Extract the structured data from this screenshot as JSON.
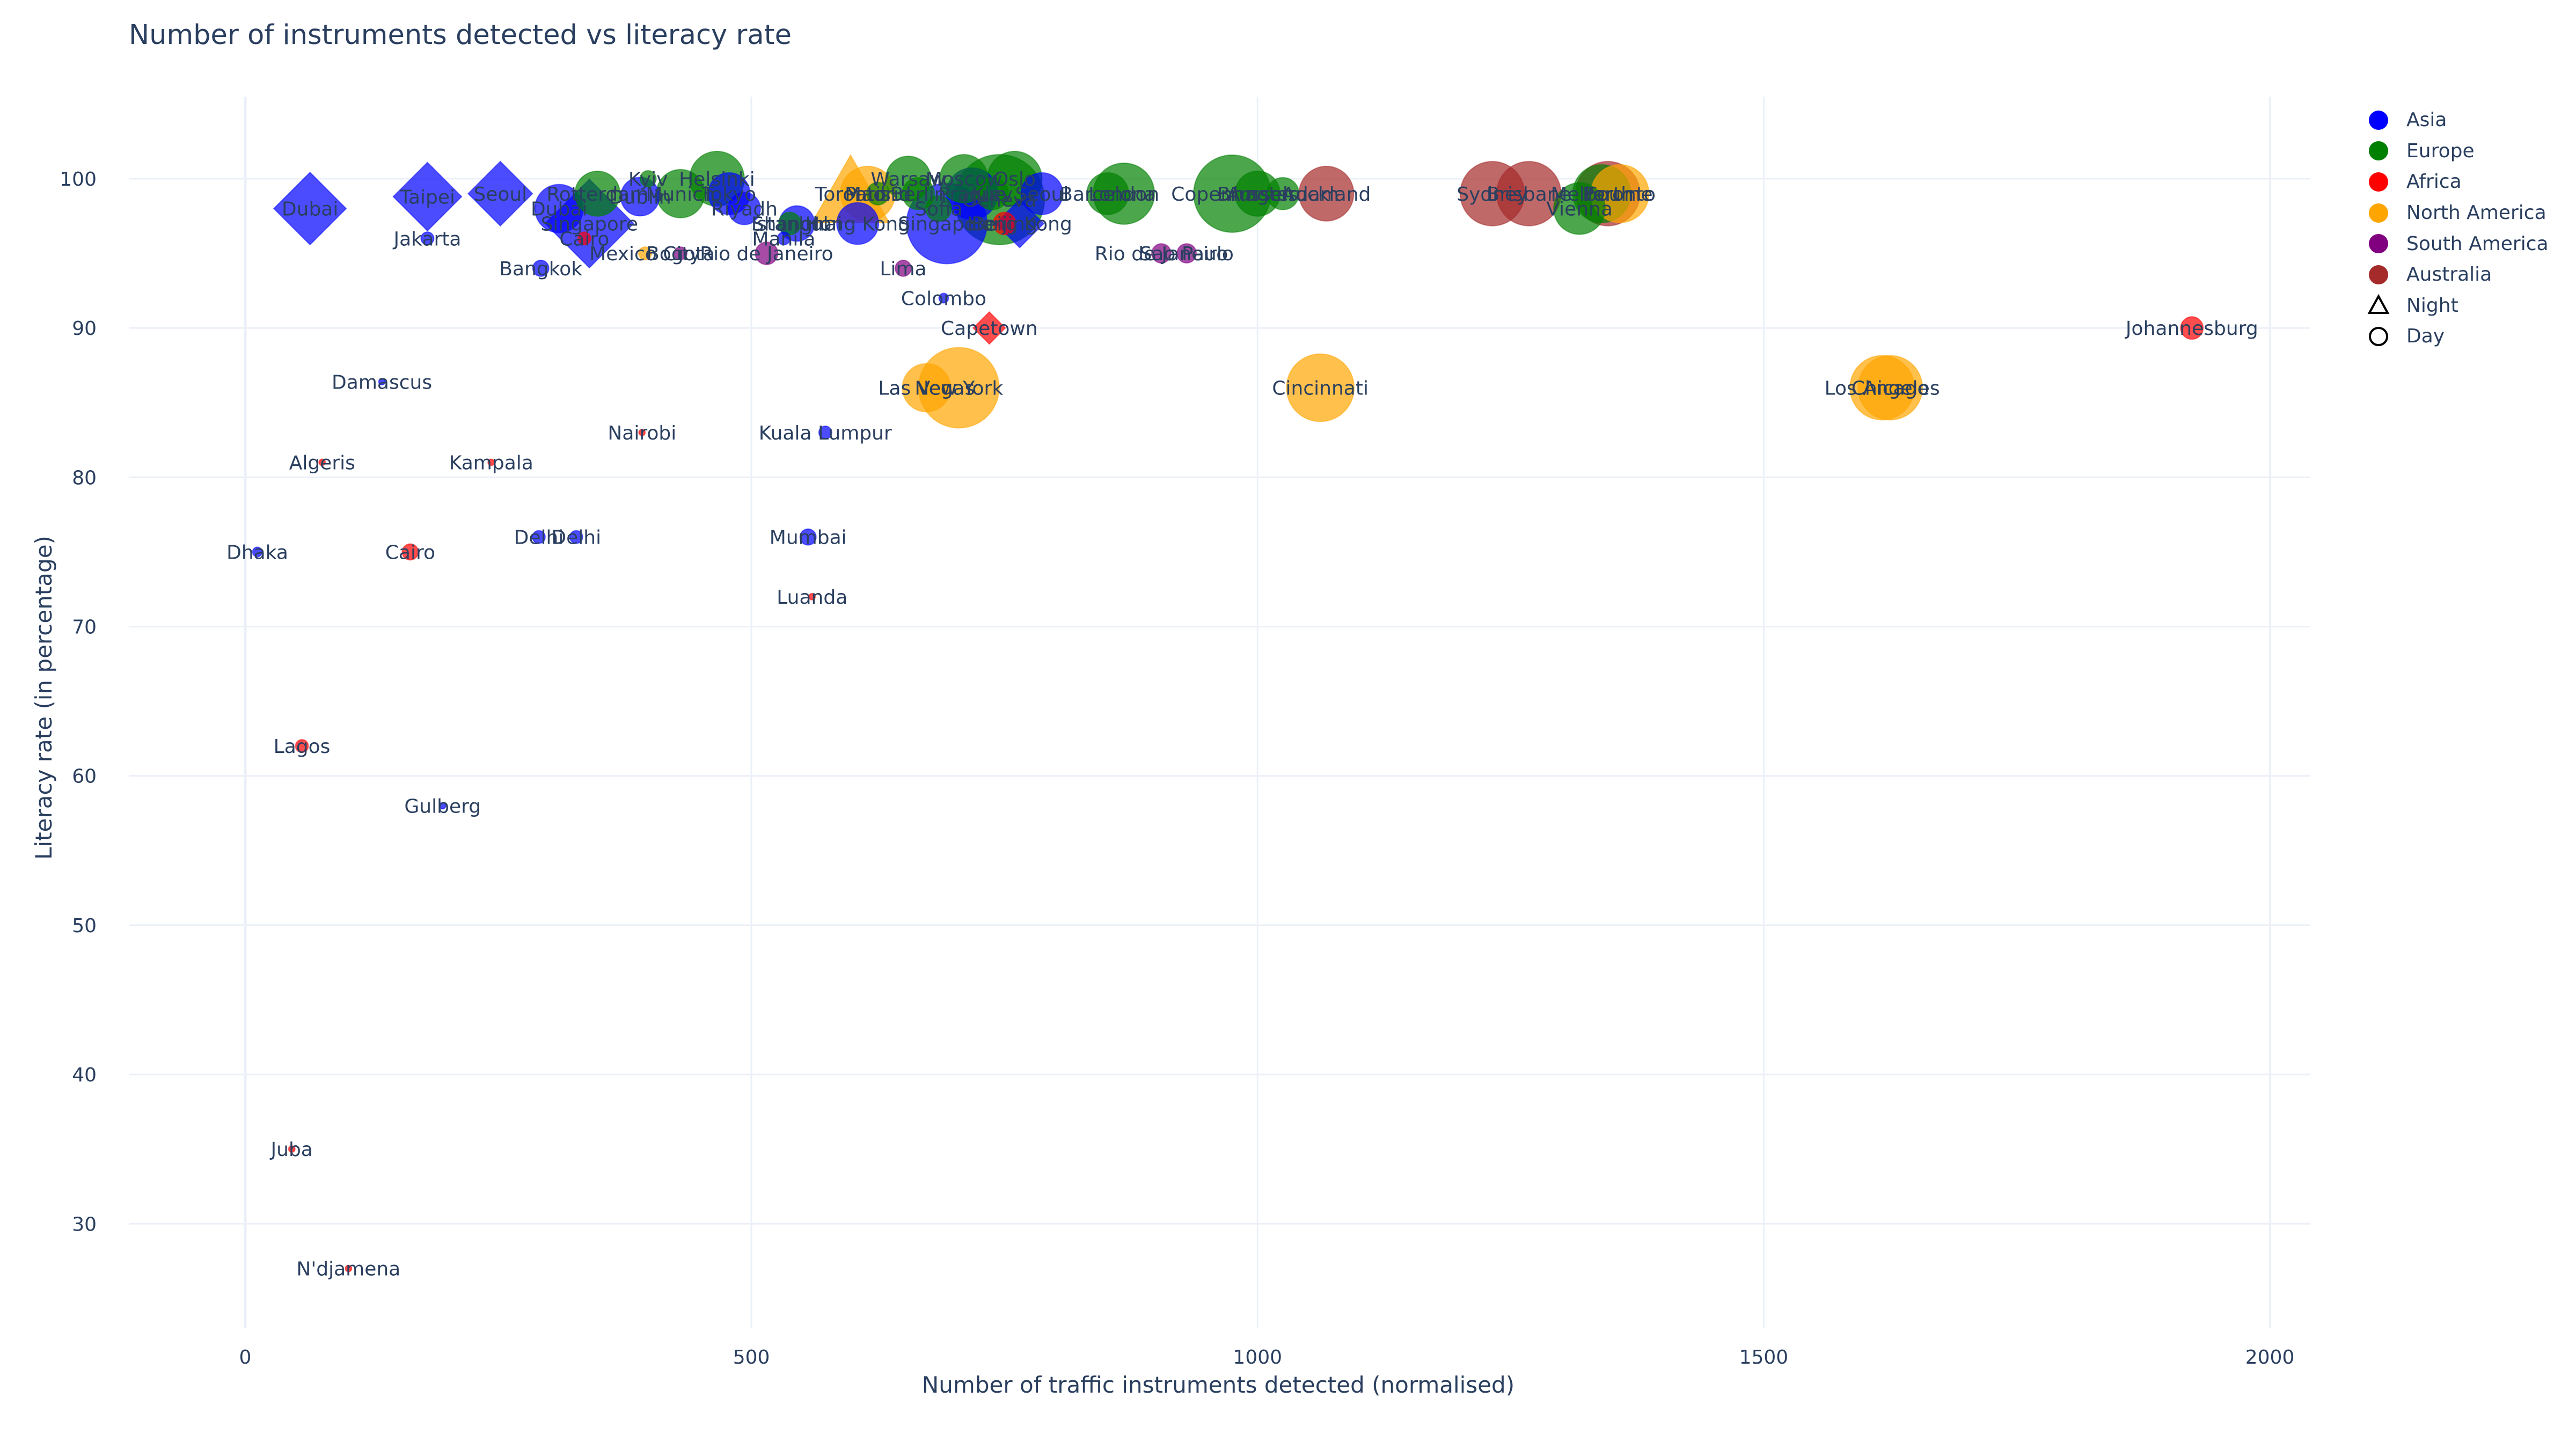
{
  "chart_data": {
    "type": "scatter",
    "title": "Number of instruments detected vs literacy rate",
    "xlabel": "Number of traffic instruments detected (normalised)",
    "ylabel": "Literacy rate (in percentage)",
    "xlim": [
      -115,
      2040
    ],
    "ylim": [
      23,
      105.5
    ],
    "x_ticks": [
      0,
      500,
      1000,
      1500,
      2000
    ],
    "y_ticks": [
      30,
      40,
      50,
      60,
      70,
      80,
      90,
      100
    ],
    "grid": true,
    "legend_position": "top-right",
    "continent_colors": {
      "Asia": "#0000ff",
      "Europe": "#008000",
      "Africa": "#ff0000",
      "North America": "#ffa500",
      "South America": "#800080",
      "Australia": "#a52a2a"
    },
    "legend": [
      {
        "label": "Asia",
        "symbol": "circle",
        "color": "#0000ff"
      },
      {
        "label": "Europe",
        "symbol": "circle",
        "color": "#008000"
      },
      {
        "label": "Africa",
        "symbol": "circle",
        "color": "#ff0000"
      },
      {
        "label": "North America",
        "symbol": "circle",
        "color": "#ffa500"
      },
      {
        "label": "South America",
        "symbol": "circle",
        "color": "#800080"
      },
      {
        "label": "Australia",
        "symbol": "circle",
        "color": "#a52a2a"
      },
      {
        "label": "Night",
        "symbol": "triangle-open",
        "color": "#000000"
      },
      {
        "label": "Day",
        "symbol": "circle-open",
        "color": "#000000"
      }
    ],
    "points": [
      {
        "label": "Dubai",
        "x": 64,
        "y": 98,
        "continent": "Asia",
        "symbol": "diamond",
        "size": 36
      },
      {
        "label": "Taipei",
        "x": 180,
        "y": 98.8,
        "continent": "Asia",
        "symbol": "diamond",
        "size": 34
      },
      {
        "label": "Seoul",
        "x": 252,
        "y": 99,
        "continent": "Asia",
        "symbol": "diamond",
        "size": 32
      },
      {
        "label": "Jakarta",
        "x": 180,
        "y": 96,
        "continent": "Asia",
        "symbol": "circle",
        "size": 8
      },
      {
        "label": "Bangkok",
        "x": 292,
        "y": 94,
        "continent": "Asia",
        "symbol": "circle",
        "size": 10
      },
      {
        "label": "Dubai",
        "x": 310,
        "y": 98,
        "continent": "Asia",
        "symbol": "circle",
        "size": 30
      },
      {
        "label": "Singapore",
        "x": 340,
        "y": 97,
        "continent": "Asia",
        "symbol": "diamond",
        "size": 44
      },
      {
        "label": "Cairo",
        "x": 335,
        "y": 96,
        "continent": "Africa",
        "symbol": "circle",
        "size": 8
      },
      {
        "label": "Rotterdam",
        "x": 348,
        "y": 99,
        "continent": "Europe",
        "symbol": "circle",
        "size": 28
      },
      {
        "label": "Dublin",
        "x": 390,
        "y": 98.8,
        "continent": "Asia",
        "symbol": "circle",
        "size": 24
      },
      {
        "label": "Kyiv",
        "x": 398,
        "y": 100,
        "continent": "Europe",
        "symbol": "circle",
        "size": 10
      },
      {
        "label": "Munich",
        "x": 430,
        "y": 99,
        "continent": "Europe",
        "symbol": "circle",
        "size": 30
      },
      {
        "label": "Helsinki",
        "x": 466,
        "y": 100,
        "continent": "Europe",
        "symbol": "circle",
        "size": 34
      },
      {
        "label": "Tokyo",
        "x": 478,
        "y": 99,
        "continent": "Asia",
        "symbol": "circle",
        "size": 26
      },
      {
        "label": "Riyadh",
        "x": 493,
        "y": 98,
        "continent": "Asia",
        "symbol": "circle",
        "size": 20
      },
      {
        "label": "Mexico City",
        "x": 395,
        "y": 95,
        "continent": "North America",
        "symbol": "circle",
        "size": 8
      },
      {
        "label": "Bogota",
        "x": 430,
        "y": 95,
        "continent": "South America",
        "symbol": "circle",
        "size": 8
      },
      {
        "label": "Rio de Janeiro",
        "x": 515,
        "y": 95,
        "continent": "South America",
        "symbol": "circle",
        "size": 14
      },
      {
        "label": "Manila",
        "x": 532,
        "y": 96,
        "continent": "Asia",
        "symbol": "circle",
        "size": 8
      },
      {
        "label": "Istanbul",
        "x": 538,
        "y": 97,
        "continent": "Europe",
        "symbol": "circle",
        "size": 14
      },
      {
        "label": "Shanghai",
        "x": 545,
        "y": 97,
        "continent": "Asia",
        "symbol": "circle",
        "size": 22
      },
      {
        "label": "Hong Kong",
        "x": 605,
        "y": 97,
        "continent": "Asia",
        "symbol": "circle",
        "size": 26
      },
      {
        "label": "Toronto",
        "x": 598,
        "y": 99,
        "continent": "North America",
        "symbol": "triangle",
        "size": 40
      },
      {
        "label": "Paris",
        "x": 615,
        "y": 99,
        "continent": "North America",
        "symbol": "circle",
        "size": 34
      },
      {
        "label": "Madrid",
        "x": 625,
        "y": 99,
        "continent": "Europe",
        "symbol": "circle",
        "size": 14
      },
      {
        "label": "Warsaw",
        "x": 655,
        "y": 100,
        "continent": "Europe",
        "symbol": "circle",
        "size": 28
      },
      {
        "label": "Berlin",
        "x": 665,
        "y": 99,
        "continent": "Europe",
        "symbol": "circle",
        "size": 20
      },
      {
        "label": "Sofia",
        "x": 685,
        "y": 98,
        "continent": "Europe",
        "symbol": "circle",
        "size": 16
      },
      {
        "label": "Singapore",
        "x": 693,
        "y": 97,
        "continent": "Asia",
        "symbol": "circle",
        "size": 50
      },
      {
        "label": "Moscow",
        "x": 710,
        "y": 100,
        "continent": "Europe",
        "symbol": "circle",
        "size": 30
      },
      {
        "label": "Prague",
        "x": 718,
        "y": 99,
        "continent": "Asia",
        "symbol": "circle",
        "size": 32
      },
      {
        "label": "Kiev",
        "x": 738,
        "y": 99,
        "continent": "Europe",
        "symbol": "circle",
        "size": 20
      },
      {
        "label": "Oslo",
        "x": 760,
        "y": 100,
        "continent": "Europe",
        "symbol": "circle",
        "size": 34
      },
      {
        "label": "Geneva",
        "x": 745,
        "y": 98.6,
        "continent": "Europe",
        "symbol": "circle",
        "size": 56
      },
      {
        "label": "Beijing",
        "x": 750,
        "y": 97,
        "continent": "Africa",
        "symbol": "circle",
        "size": 14
      },
      {
        "label": "Hong Kong",
        "x": 765,
        "y": 97,
        "continent": "Asia",
        "symbol": "diamond",
        "size": 24
      },
      {
        "label": "Seoul",
        "x": 787,
        "y": 99,
        "continent": "Asia",
        "symbol": "circle",
        "size": 26
      },
      {
        "label": "Lima",
        "x": 650,
        "y": 94,
        "continent": "South America",
        "symbol": "circle",
        "size": 10
      },
      {
        "label": "Colombo",
        "x": 690,
        "y": 92,
        "continent": "Asia",
        "symbol": "circle",
        "size": 6
      },
      {
        "label": "Capetown",
        "x": 735,
        "y": 90,
        "continent": "Africa",
        "symbol": "diamond",
        "size": 16
      },
      {
        "label": "Las Vegas",
        "x": 673,
        "y": 86,
        "continent": "North America",
        "symbol": "circle",
        "size": 30
      },
      {
        "label": "New York",
        "x": 705,
        "y": 86,
        "continent": "North America",
        "symbol": "circle",
        "size": 50
      },
      {
        "label": "Kuala Lumpur",
        "x": 573,
        "y": 83,
        "continent": "Asia",
        "symbol": "circle",
        "size": 8
      },
      {
        "label": "Mumbai",
        "x": 556,
        "y": 76,
        "continent": "Asia",
        "symbol": "circle",
        "size": 10
      },
      {
        "label": "Luanda",
        "x": 560,
        "y": 72,
        "continent": "Africa",
        "symbol": "circle",
        "size": 4
      },
      {
        "label": "Nairobi",
        "x": 392,
        "y": 83,
        "continent": "Africa",
        "symbol": "circle",
        "size": 4
      },
      {
        "label": "Delhi",
        "x": 290,
        "y": 76,
        "continent": "Asia",
        "symbol": "circle",
        "size": 8
      },
      {
        "label": "Delhi",
        "x": 327,
        "y": 76,
        "continent": "Asia",
        "symbol": "circle",
        "size": 8
      },
      {
        "label": "Damascus",
        "x": 135,
        "y": 86.4,
        "continent": "Asia",
        "symbol": "circle",
        "size": 4
      },
      {
        "label": "Algeris",
        "x": 76,
        "y": 81,
        "continent": "Africa",
        "symbol": "circle",
        "size": 4
      },
      {
        "label": "Kampala",
        "x": 243,
        "y": 81,
        "continent": "Africa",
        "symbol": "circle",
        "size": 4
      },
      {
        "label": "Dhaka",
        "x": 12,
        "y": 75,
        "continent": "Asia",
        "symbol": "circle",
        "size": 6
      },
      {
        "label": "Cairo",
        "x": 163,
        "y": 75,
        "continent": "Africa",
        "symbol": "circle",
        "size": 10
      },
      {
        "label": "Lagos",
        "x": 56,
        "y": 62,
        "continent": "Africa",
        "symbol": "circle",
        "size": 8
      },
      {
        "label": "Gulberg",
        "x": 195,
        "y": 58,
        "continent": "Asia",
        "symbol": "circle",
        "size": 4
      },
      {
        "label": "Juba",
        "x": 46,
        "y": 35,
        "continent": "Africa",
        "symbol": "circle",
        "size": 4
      },
      {
        "label": "N'djamena",
        "x": 102,
        "y": 27,
        "continent": "Africa",
        "symbol": "circle",
        "size": 4
      },
      {
        "label": "Barcelona",
        "x": 852,
        "y": 99,
        "continent": "Europe",
        "symbol": "circle",
        "size": 26
      },
      {
        "label": "London",
        "x": 868,
        "y": 99,
        "continent": "Europe",
        "symbol": "circle",
        "size": 38
      },
      {
        "label": "Copenhagen",
        "x": 975,
        "y": 99,
        "continent": "Europe",
        "symbol": "circle",
        "size": 48
      },
      {
        "label": "Brussels",
        "x": 1000,
        "y": 99,
        "continent": "Europe",
        "symbol": "circle",
        "size": 28
      },
      {
        "label": "Amsterdam",
        "x": 1025,
        "y": 99,
        "continent": "Europe",
        "symbol": "circle",
        "size": 20
      },
      {
        "label": "Auckland",
        "x": 1068,
        "y": 99,
        "continent": "Australia",
        "symbol": "circle",
        "size": 34
      },
      {
        "label": "Rio de Janeiro",
        "x": 905,
        "y": 95,
        "continent": "South America",
        "symbol": "circle",
        "size": 12
      },
      {
        "label": "Sao Paulo",
        "x": 930,
        "y": 95,
        "continent": "South America",
        "symbol": "circle",
        "size": 12
      },
      {
        "label": "Cincinnati",
        "x": 1062,
        "y": 86,
        "continent": "North America",
        "symbol": "circle",
        "size": 42
      },
      {
        "label": "Sydney",
        "x": 1232,
        "y": 99,
        "continent": "Australia",
        "symbol": "circle",
        "size": 40
      },
      {
        "label": "Brisbane",
        "x": 1268,
        "y": 99,
        "continent": "Australia",
        "symbol": "circle",
        "size": 40
      },
      {
        "label": "Vienna",
        "x": 1318,
        "y": 98,
        "continent": "Europe",
        "symbol": "circle",
        "size": 32
      },
      {
        "label": "Melbourne",
        "x": 1340,
        "y": 99,
        "continent": "Europe",
        "symbol": "circle",
        "size": 36
      },
      {
        "label": "Perth",
        "x": 1346,
        "y": 99,
        "continent": "Australia",
        "symbol": "circle",
        "size": 40
      },
      {
        "label": "Toronto",
        "x": 1358,
        "y": 99,
        "continent": "North America",
        "symbol": "circle",
        "size": 36
      },
      {
        "label": "Los Angeles",
        "x": 1617,
        "y": 86,
        "continent": "North America",
        "symbol": "circle",
        "size": 40
      },
      {
        "label": "Chicago",
        "x": 1625,
        "y": 86,
        "continent": "North America",
        "symbol": "circle",
        "size": 40
      },
      {
        "label": "Johannesburg",
        "x": 1923,
        "y": 90,
        "continent": "Africa",
        "symbol": "circle",
        "size": 14
      }
    ]
  }
}
